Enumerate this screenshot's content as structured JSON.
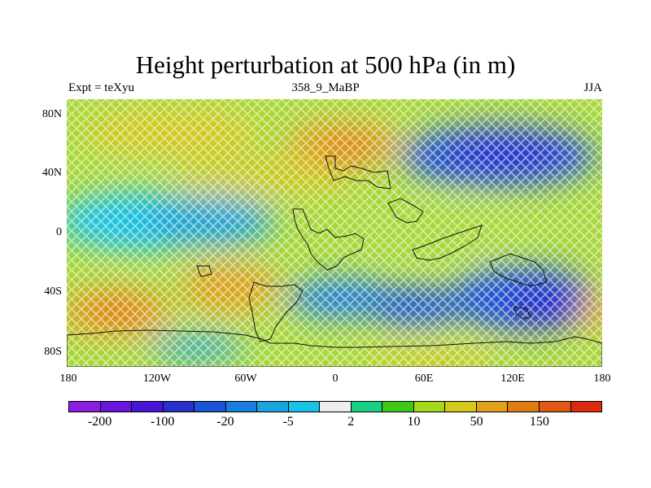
{
  "title": "Height perturbation at 500 hPa (in m)",
  "subtitle_left": "Expt = teXyu",
  "subtitle_center": "358_9_MaBP",
  "subtitle_right": "JJA",
  "y_labels": [
    "80N",
    "40N",
    "0",
    "40S",
    "80S"
  ],
  "x_labels": [
    "180",
    "120W",
    "60W",
    "0",
    "60E",
    "120E",
    "180"
  ],
  "legend": {
    "colors": [
      "#8a1fe0",
      "#6a14dc",
      "#4a14d6",
      "#2a2fcc",
      "#1a55d8",
      "#1a7ee0",
      "#1aa3dc",
      "#17c2e6",
      "#eeeeee",
      "#17d286",
      "#3ec81a",
      "#a4d81a",
      "#d4c81a",
      "#e0a01a",
      "#e07b14",
      "#e05a14",
      "#dc2a10"
    ],
    "labels": [
      "-200",
      "-100",
      "-20",
      "-5",
      "2",
      "10",
      "50",
      "150"
    ]
  },
  "map": {
    "projection": "cylindrical-equidistant",
    "hatching": "cross-hatched",
    "coastlines": true
  }
}
